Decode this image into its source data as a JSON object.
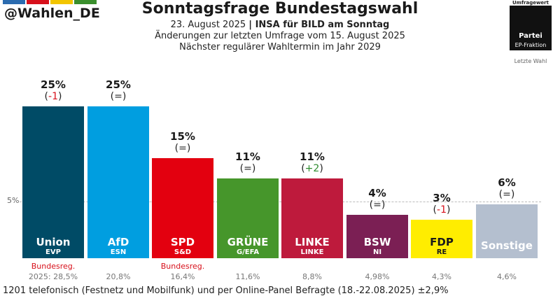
{
  "header": {
    "handle": "@Wahlen_DE",
    "title": "Sonntagsfrage Bundestagswahl",
    "subtitle_date": "23. August 2025",
    "subtitle_source": "INSA für BILD am Sonntag",
    "subtitle_changes": "Änderungen zur letzten Umfrage vom 15. August 2025",
    "subtitle_next": "Nächster regulärer Wahltermin im Jahr 2029",
    "top_stripe_colors": [
      "#2b6cb0",
      "#d7101b",
      "#f2c500",
      "#3a8f2d"
    ]
  },
  "legend": {
    "top_label": "Umfragewert",
    "box_line1": "Partei",
    "box_line2": "EP-Fraktion",
    "last_label": "Letzte Wahl"
  },
  "axis": {
    "reference_label": "5%",
    "reference_value": 5
  },
  "footer": {
    "text": "1201 telefonisch (Festnetz und Mobilfunk) und per Online-Panel Befragte (18.-22.08.2025) ±2,9%"
  },
  "chart_data": {
    "type": "bar",
    "title": "Sonntagsfrage Bundestagswahl",
    "reference_line": 5,
    "bars": [
      {
        "party": "Union",
        "group": "EVP",
        "value": 25,
        "value_label": "25%",
        "change": "-1",
        "change_color": "#d7101b",
        "last": "2025: 28,5%",
        "gov": "Bundesreg.",
        "color": "#004b66"
      },
      {
        "party": "AfD",
        "group": "ESN",
        "value": 25,
        "value_label": "25%",
        "change": "=",
        "change_color": "#222222",
        "last": "20,8%",
        "gov": "",
        "color": "#009ee0"
      },
      {
        "party": "SPD",
        "group": "S&D",
        "value": 15,
        "value_label": "15%",
        "change": "=",
        "change_color": "#222222",
        "last": "16,4%",
        "gov": "Bundesreg.",
        "color": "#e3000f"
      },
      {
        "party": "GRÜNE",
        "group": "G/EFA",
        "value": 11,
        "value_label": "11%",
        "change": "=",
        "change_color": "#222222",
        "last": "11,6%",
        "gov": "",
        "color": "#46962b"
      },
      {
        "party": "LINKE",
        "group": "LINKE",
        "value": 11,
        "value_label": "11%",
        "change": "+2",
        "change_color": "#2e8b2e",
        "last": "8,8%",
        "gov": "",
        "color": "#be1a3c"
      },
      {
        "party": "BSW",
        "group": "NI",
        "value": 4,
        "value_label": "4%",
        "change": "=",
        "change_color": "#222222",
        "last": "4,98%",
        "gov": "",
        "color": "#7b1f54"
      },
      {
        "party": "FDP",
        "group": "RE",
        "value": 3,
        "value_label": "3%",
        "change": "-1",
        "change_color": "#d7101b",
        "last": "4,3%",
        "gov": "",
        "color": "#ffed00"
      },
      {
        "party": "Sonstige",
        "group": "",
        "value": 6,
        "value_label": "6%",
        "change": "=",
        "change_color": "#222222",
        "last": "4,6%",
        "gov": "",
        "color": "#b4bfcf"
      }
    ]
  }
}
